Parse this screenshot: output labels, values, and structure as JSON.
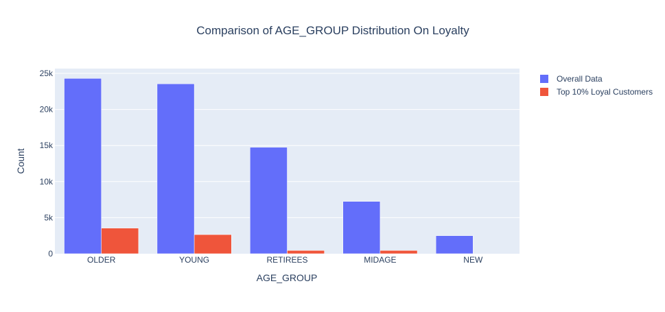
{
  "chart_data": {
    "type": "bar",
    "title": "Comparison of AGE_GROUP Distribution On Loyalty",
    "xlabel": "AGE_GROUP",
    "ylabel": "Count",
    "categories": [
      "OLDER",
      "YOUNG",
      "RETIREES",
      "MIDAGE",
      "NEW"
    ],
    "series": [
      {
        "name": "Overall Data",
        "color": "#636efa",
        "values": [
          24300,
          23550,
          14750,
          7250,
          2500
        ]
      },
      {
        "name": "Top 10% Loyal Customers",
        "color": "#ef553b",
        "values": [
          3550,
          2650,
          450,
          450,
          0
        ]
      }
    ],
    "ylim": [
      0,
      25000
    ],
    "yticks": [
      0,
      5000,
      10000,
      15000,
      20000,
      25000
    ],
    "ytick_labels": [
      "0",
      "5k",
      "10k",
      "15k",
      "20k",
      "25k"
    ],
    "grid": true,
    "plot_background": "#e5ecf6",
    "legend_position": "top-right"
  }
}
